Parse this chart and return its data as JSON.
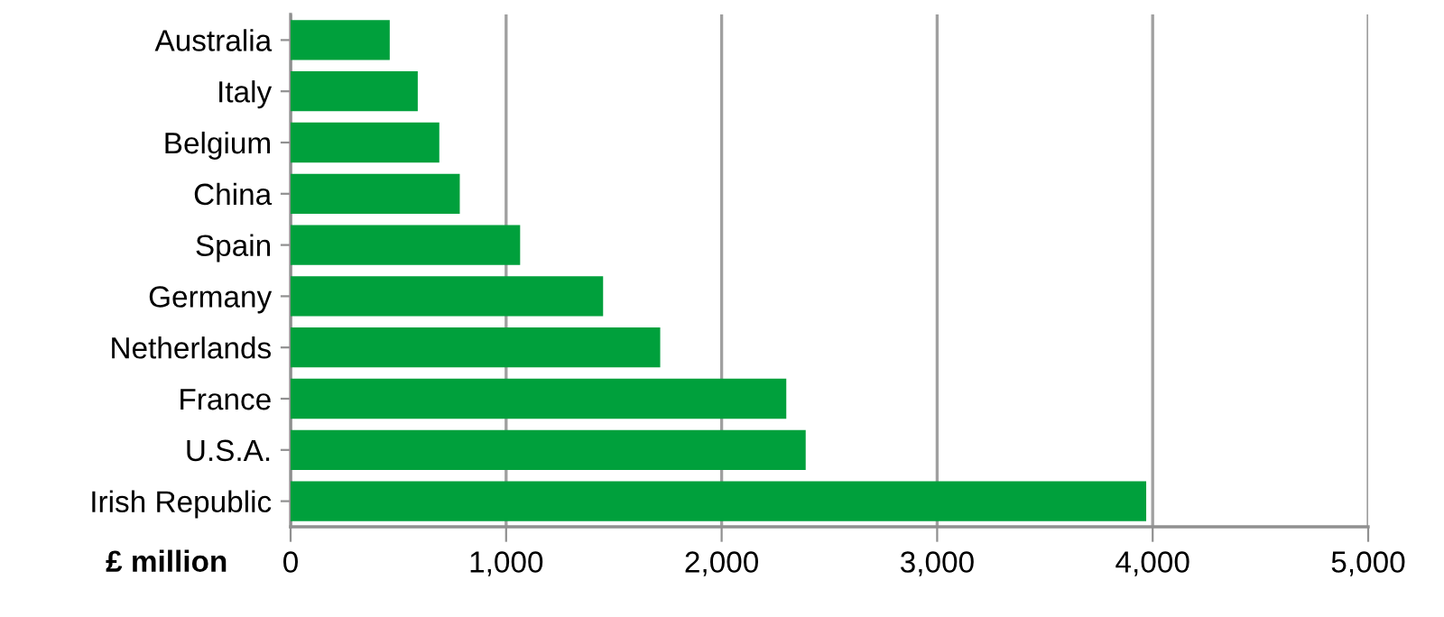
{
  "chart_data": {
    "type": "bar",
    "orientation": "horizontal",
    "xlabel": "£ million",
    "categories": [
      "Australia",
      "Italy",
      "Belgium",
      "China",
      "Spain",
      "Germany",
      "Netherlands",
      "France",
      "U.S.A.",
      "Irish Republic"
    ],
    "values": [
      460,
      590,
      690,
      785,
      1065,
      1450,
      1715,
      2300,
      2390,
      3970
    ],
    "color": "#00a03c",
    "xlim": [
      0,
      5000
    ],
    "xticks": [
      {
        "value": 0,
        "label": "0"
      },
      {
        "value": 1000,
        "label": "1,000"
      },
      {
        "value": 2000,
        "label": "2,000"
      },
      {
        "value": 3000,
        "label": "3,000"
      },
      {
        "value": 4000,
        "label": "4,000"
      },
      {
        "value": 5000,
        "label": "5,000"
      }
    ],
    "grid": "x",
    "legend": false
  }
}
